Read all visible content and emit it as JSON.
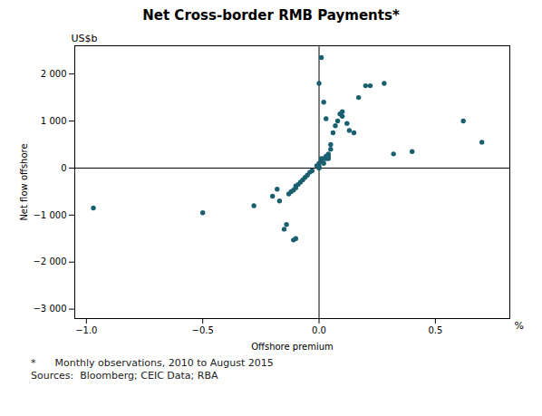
{
  "chart_data": {
    "type": "scatter",
    "title": "Net Cross-border RMB Payments*",
    "xlabel": "Offshore premium",
    "ylabel": "Net flow offshore",
    "ylabel_unit": "US$b",
    "xlabel_unit": "%",
    "footnotes": [
      "*      Monthly observations, 2010 to August 2015",
      "Sources:  Bloomberg; CEIC Data; RBA"
    ],
    "color": "#1a5f70",
    "xlim": [
      -1.05,
      0.82
    ],
    "ylim": [
      -3200,
      2600
    ],
    "xticks": [
      {
        "value": -1.0,
        "label": "−1.0"
      },
      {
        "value": -0.5,
        "label": "−0.5"
      },
      {
        "value": 0.0,
        "label": "0.0"
      },
      {
        "value": 0.5,
        "label": "0.5"
      }
    ],
    "yticks": [
      {
        "value": -3000,
        "label": "−3 000"
      },
      {
        "value": -2000,
        "label": "−2 000"
      },
      {
        "value": -1000,
        "label": "−1 000"
      },
      0,
      {
        "value": 1000,
        "label": "1 000"
      },
      {
        "value": 2000,
        "label": "2 000"
      }
    ],
    "x": [
      -0.97,
      -0.13,
      -0.12,
      -0.11,
      -0.1,
      -0.1,
      -0.09,
      -0.08,
      -0.07,
      -0.06,
      -0.05,
      -0.04,
      -0.03,
      -0.5,
      -0.28,
      -0.2,
      -0.18,
      -0.17,
      -0.15,
      -0.14,
      -0.01,
      0.0,
      0.0,
      0.0,
      0.01,
      0.01,
      0.02,
      0.02,
      0.03,
      0.03,
      0.04,
      0.04,
      0.05,
      0.05,
      0.06,
      0.07,
      0.08,
      0.09,
      0.1,
      0.1,
      0.12,
      0.13,
      0.15,
      0.17,
      0.2,
      0.22,
      0.28,
      0.32,
      0.4,
      0.62,
      0.7,
      -0.11,
      -0.1,
      0.0,
      0.01,
      0.02,
      0.03,
      0.04
    ],
    "values": [
      -850,
      -550,
      -500,
      -470,
      -420,
      -380,
      -350,
      -300,
      -250,
      -200,
      -150,
      -90,
      -60,
      -950,
      -800,
      -600,
      -450,
      -700,
      -1300,
      -1200,
      50,
      0,
      30,
      100,
      200,
      150,
      200,
      100,
      250,
      200,
      300,
      200,
      500,
      400,
      750,
      900,
      1000,
      1150,
      1100,
      1200,
      950,
      800,
      750,
      1500,
      1750,
      1750,
      1800,
      300,
      350,
      1000,
      550,
      -1530,
      -1500,
      1800,
      2350,
      1400,
      1050,
      250
    ]
  }
}
